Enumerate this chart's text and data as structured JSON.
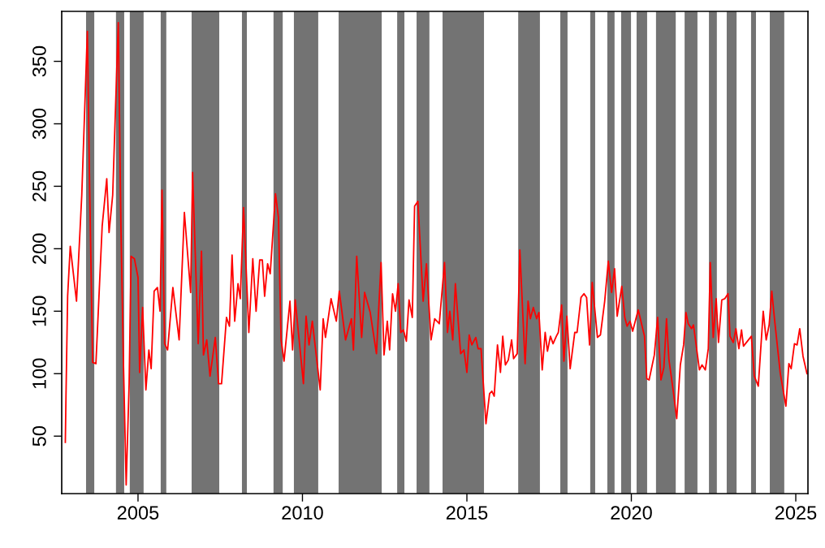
{
  "chart_data": {
    "type": "line",
    "xlim": [
      2002.68,
      2025.37
    ],
    "ylim": [
      4,
      390
    ],
    "xticks": [
      2005,
      2010,
      2015,
      2020,
      2025
    ],
    "yticks": [
      50,
      100,
      150,
      200,
      250,
      300,
      350
    ],
    "grid": false,
    "marker": "none",
    "line_style": "solid",
    "bands": [
      {
        "axis": "x",
        "from": 2003.42,
        "to": 2003.67,
        "color": "#737373"
      },
      {
        "axis": "x",
        "from": 2004.33,
        "to": 2004.58,
        "color": "#737373"
      },
      {
        "axis": "x",
        "from": 2004.75,
        "to": 2005.17,
        "color": "#737373"
      },
      {
        "axis": "x",
        "from": 2005.69,
        "to": 2005.86,
        "color": "#737373"
      },
      {
        "axis": "x",
        "from": 2006.63,
        "to": 2007.47,
        "color": "#737373"
      },
      {
        "axis": "x",
        "from": 2008.16,
        "to": 2008.31,
        "color": "#737373"
      },
      {
        "axis": "x",
        "from": 2009.12,
        "to": 2009.4,
        "color": "#737373"
      },
      {
        "axis": "x",
        "from": 2009.74,
        "to": 2010.48,
        "color": "#737373"
      },
      {
        "axis": "x",
        "from": 2011.1,
        "to": 2012.41,
        "color": "#737373"
      },
      {
        "axis": "x",
        "from": 2012.88,
        "to": 2013.1,
        "color": "#737373"
      },
      {
        "axis": "x",
        "from": 2013.47,
        "to": 2013.86,
        "color": "#737373"
      },
      {
        "axis": "x",
        "from": 2014.26,
        "to": 2015.52,
        "color": "#737373"
      },
      {
        "axis": "x",
        "from": 2016.56,
        "to": 2017.22,
        "color": "#737373"
      },
      {
        "axis": "x",
        "from": 2017.84,
        "to": 2018.06,
        "color": "#737373"
      },
      {
        "axis": "x",
        "from": 2018.75,
        "to": 2018.9,
        "color": "#737373"
      },
      {
        "axis": "x",
        "from": 2019.27,
        "to": 2019.49,
        "color": "#737373"
      },
      {
        "axis": "x",
        "from": 2019.69,
        "to": 2019.99,
        "color": "#737373"
      },
      {
        "axis": "x",
        "from": 2020.16,
        "to": 2020.48,
        "color": "#737373"
      },
      {
        "axis": "x",
        "from": 2020.75,
        "to": 2021.35,
        "color": "#737373"
      },
      {
        "axis": "x",
        "from": 2021.62,
        "to": 2022.01,
        "color": "#737373"
      },
      {
        "axis": "x",
        "from": 2022.36,
        "to": 2022.6,
        "color": "#737373"
      },
      {
        "axis": "x",
        "from": 2022.9,
        "to": 2023.2,
        "color": "#737373"
      },
      {
        "axis": "x",
        "from": 2023.64,
        "to": 2023.79,
        "color": "#737373"
      },
      {
        "axis": "x",
        "from": 2024.21,
        "to": 2024.65,
        "color": "#737373"
      }
    ],
    "series": [
      {
        "color": "#ff0000",
        "x": [
          2002.79,
          2002.81,
          2002.86,
          2002.94,
          2003.13,
          2003.29,
          2003.46,
          2003.53,
          2003.62,
          2003.72,
          2003.91,
          2004.05,
          2004.12,
          2004.23,
          2004.4,
          2004.48,
          2004.56,
          2004.64,
          2004.73,
          2004.79,
          2004.89,
          2005.0,
          2005.05,
          2005.14,
          2005.24,
          2005.33,
          2005.4,
          2005.49,
          2005.59,
          2005.67,
          2005.73,
          2005.81,
          2005.9,
          2006.06,
          2006.25,
          2006.41,
          2006.6,
          2006.66,
          2006.83,
          2006.93,
          2006.99,
          2007.09,
          2007.19,
          2007.35,
          2007.45,
          2007.54,
          2007.69,
          2007.78,
          2007.86,
          2007.94,
          2008.04,
          2008.11,
          2008.21,
          2008.37,
          2008.49,
          2008.59,
          2008.7,
          2008.78,
          2008.85,
          2008.94,
          2009.02,
          2009.18,
          2009.27,
          2009.35,
          2009.44,
          2009.62,
          2009.7,
          2009.78,
          2010.03,
          2010.11,
          2010.2,
          2010.3,
          2010.54,
          2010.63,
          2010.7,
          2010.87,
          2011.03,
          2011.12,
          2011.31,
          2011.49,
          2011.55,
          2011.65,
          2011.8,
          2011.89,
          2012.06,
          2012.25,
          2012.39,
          2012.48,
          2012.58,
          2012.65,
          2012.74,
          2012.83,
          2012.91,
          2012.99,
          2013.07,
          2013.16,
          2013.24,
          2013.34,
          2013.41,
          2013.51,
          2013.67,
          2013.77,
          2013.91,
          2014.02,
          2014.16,
          2014.32,
          2014.41,
          2014.48,
          2014.57,
          2014.65,
          2014.81,
          2014.91,
          2015.0,
          2015.07,
          2015.15,
          2015.27,
          2015.34,
          2015.43,
          2015.58,
          2015.69,
          2015.76,
          2015.83,
          2015.93,
          2016.02,
          2016.09,
          2016.17,
          2016.26,
          2016.36,
          2016.42,
          2016.53,
          2016.61,
          2016.77,
          2016.86,
          2016.93,
          2017.02,
          2017.12,
          2017.19,
          2017.29,
          2017.38,
          2017.45,
          2017.54,
          2017.62,
          2017.72,
          2017.78,
          2017.88,
          2017.95,
          2018.04,
          2018.14,
          2018.28,
          2018.35,
          2018.47,
          2018.56,
          2018.64,
          2018.73,
          2018.81,
          2018.97,
          2019.06,
          2019.19,
          2019.3,
          2019.4,
          2019.49,
          2019.57,
          2019.71,
          2019.8,
          2019.87,
          2019.96,
          2020.04,
          2020.21,
          2020.4,
          2020.47,
          2020.54,
          2020.7,
          2020.8,
          2020.9,
          2020.99,
          2021.07,
          2021.14,
          2021.28,
          2021.38,
          2021.49,
          2021.59,
          2021.66,
          2021.73,
          2021.83,
          2021.89,
          2022.07,
          2022.15,
          2022.25,
          2022.34,
          2022.4,
          2022.49,
          2022.58,
          2022.65,
          2022.75,
          2022.84,
          2022.94,
          2023.0,
          2023.1,
          2023.18,
          2023.27,
          2023.35,
          2023.41,
          2023.65,
          2023.74,
          2023.86,
          2024.01,
          2024.1,
          2024.19,
          2024.27,
          2024.36,
          2024.53,
          2024.7,
          2024.79,
          2024.86,
          2024.96,
          2025.04,
          2025.12,
          2025.22,
          2025.34
        ],
        "values": [
          45,
          82,
          162,
          202,
          158,
          243,
          374,
          248,
          109,
          108,
          218,
          256,
          213,
          243,
          381,
          218,
          105,
          11,
          92,
          194,
          192,
          177,
          101,
          153,
          87,
          119,
          104,
          166,
          169,
          150,
          247,
          124,
          119,
          169,
          127,
          229,
          165,
          261,
          124,
          198,
          115,
          127,
          98,
          129,
          92,
          92,
          145,
          138,
          195,
          142,
          172,
          160,
          233,
          133,
          192,
          150,
          191,
          191,
          162,
          188,
          180,
          244,
          225,
          127,
          110,
          158,
          119,
          159,
          92,
          146,
          123,
          142,
          87,
          144,
          129,
          160,
          142,
          166,
          127,
          144,
          119,
          194,
          129,
          165,
          149,
          116,
          189,
          115,
          142,
          119,
          164,
          150,
          172,
          133,
          135,
          126,
          159,
          145,
          234,
          238,
          158,
          188,
          127,
          144,
          140,
          189,
          133,
          150,
          127,
          172,
          116,
          119,
          101,
          131,
          123,
          129,
          120,
          120,
          60,
          84,
          86,
          82,
          123,
          101,
          130,
          107,
          111,
          127,
          112,
          116,
          199,
          108,
          158,
          144,
          153,
          144,
          149,
          103,
          133,
          118,
          130,
          124,
          130,
          133,
          155,
          110,
          146,
          104,
          133,
          133,
          161,
          164,
          161,
          123,
          173,
          129,
          131,
          158,
          190,
          165,
          184,
          146,
          170,
          145,
          138,
          142,
          134,
          151,
          130,
          96,
          95,
          115,
          145,
          95,
          105,
          144,
          112,
          85,
          64,
          107,
          123,
          149,
          140,
          136,
          139,
          103,
          107,
          103,
          120,
          189,
          129,
          160,
          125,
          159,
          160,
          164,
          130,
          125,
          136,
          120,
          135,
          122,
          130,
          98,
          90,
          150,
          127,
          139,
          166,
          142,
          100,
          74,
          108,
          104,
          124,
          123,
          136,
          114,
          100
        ]
      }
    ]
  }
}
